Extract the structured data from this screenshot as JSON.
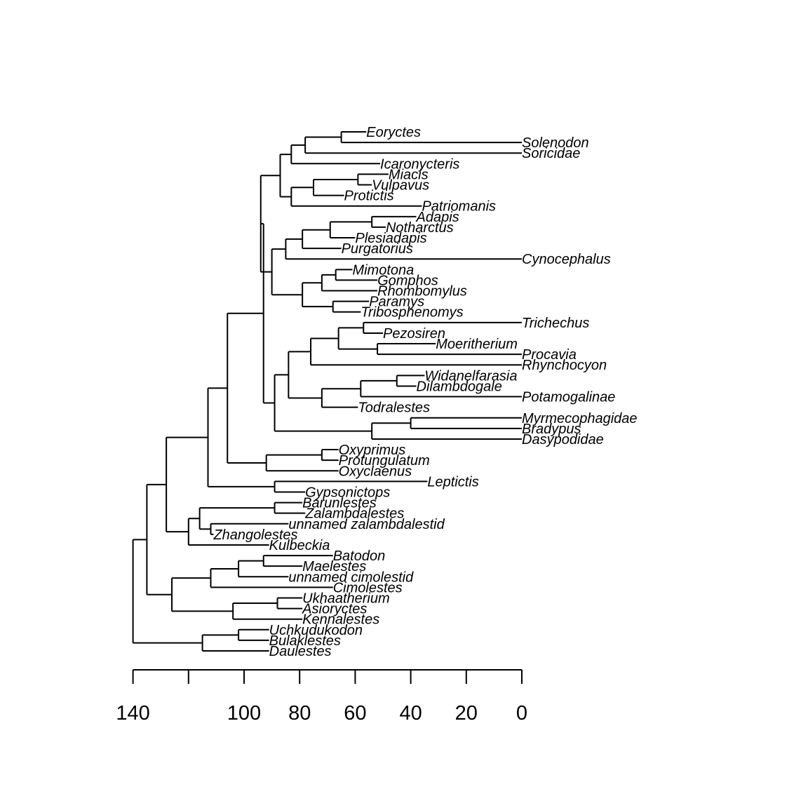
{
  "colors": {
    "ink": "#000000",
    "background": "#ffffff"
  },
  "axis": {
    "unit": "",
    "min": 0,
    "max": 140,
    "direction": "reversed",
    "ticks": [
      140,
      120,
      100,
      80,
      60,
      40,
      20,
      0
    ],
    "labeled_ticks": [
      140,
      100,
      80,
      60,
      40,
      20,
      0
    ]
  },
  "tips": [
    {
      "id": "eoryctes",
      "name": "Eoryctes",
      "age": 56
    },
    {
      "id": "solenodon",
      "name": "Solenodon",
      "age": 0
    },
    {
      "id": "soricidae",
      "name": "Soricidae",
      "age": 0
    },
    {
      "id": "icaronycteris",
      "name": "Icaronycteris",
      "age": 51
    },
    {
      "id": "miacis",
      "name": "Miacis",
      "age": 48
    },
    {
      "id": "vulpavus",
      "name": "Vulpavus",
      "age": 54
    },
    {
      "id": "protictis",
      "name": "Protictis",
      "age": 64
    },
    {
      "id": "patriomanis",
      "name": "Patriomanis",
      "age": 36
    },
    {
      "id": "adapis",
      "name": "Adapis",
      "age": 38
    },
    {
      "id": "notharctus",
      "name": "Notharctus",
      "age": 49
    },
    {
      "id": "plesiadapis",
      "name": "Plesiadapis",
      "age": 60
    },
    {
      "id": "purgatorius",
      "name": "Purgatorius",
      "age": 65
    },
    {
      "id": "cynocephalus",
      "name": "Cynocephalus",
      "age": 0
    },
    {
      "id": "mimotona",
      "name": "Mimotona",
      "age": 61
    },
    {
      "id": "gomphos",
      "name": "Gomphos",
      "age": 52
    },
    {
      "id": "rhombomylus",
      "name": "Rhombomylus",
      "age": 52
    },
    {
      "id": "paramys",
      "name": "Paramys",
      "age": 55
    },
    {
      "id": "tribosphenomys",
      "name": "Tribosphenomys",
      "age": 58
    },
    {
      "id": "trichechus",
      "name": "Trichechus",
      "age": 0
    },
    {
      "id": "pezosiren",
      "name": "Pezosiren",
      "age": 50
    },
    {
      "id": "moeritherium",
      "name": "Moeritherium",
      "age": 31
    },
    {
      "id": "procavia",
      "name": "Procavia",
      "age": 0
    },
    {
      "id": "rhynchocyon",
      "name": "Rhynchocyon",
      "age": 0
    },
    {
      "id": "widanelfarasia",
      "name": "Widanelfarasia",
      "age": 35
    },
    {
      "id": "dilambdogale",
      "name": "Dilambdogale",
      "age": 38
    },
    {
      "id": "potamogalinae",
      "name": "Potamogalinae",
      "age": 0
    },
    {
      "id": "todralestes",
      "name": "Todralestes",
      "age": 59
    },
    {
      "id": "myrmecophagidae",
      "name": "Myrmecophagidae",
      "age": 0
    },
    {
      "id": "bradypus",
      "name": "Bradypus",
      "age": 0
    },
    {
      "id": "dasypodidae",
      "name": "Dasypodidae",
      "age": 0
    },
    {
      "id": "oxyprimus",
      "name": "Oxyprimus",
      "age": 66
    },
    {
      "id": "protungulatum",
      "name": "Protungulatum",
      "age": 66
    },
    {
      "id": "oxyclaenus",
      "name": "Oxyclaenus",
      "age": 66
    },
    {
      "id": "leptictis",
      "name": "Leptictis",
      "age": 34
    },
    {
      "id": "gypsonictops",
      "name": "Gypsonictops",
      "age": 78
    },
    {
      "id": "barunlestes",
      "name": "Barunlestes",
      "age": 79
    },
    {
      "id": "zalambdalestes",
      "name": "Zalambdalestes",
      "age": 78
    },
    {
      "id": "unnamed_zalambdalestid",
      "name": "unnamed zalambdalestid",
      "age": 84
    },
    {
      "id": "zhangolestes",
      "name": "Zhangolestes",
      "age": 111
    },
    {
      "id": "kulbeckia",
      "name": "Kulbeckia",
      "age": 91
    },
    {
      "id": "batodon",
      "name": "Batodon",
      "age": 68
    },
    {
      "id": "maelestes",
      "name": "Maelestes",
      "age": 79
    },
    {
      "id": "unnamed_cimolestid",
      "name": "unnamed cimolestid",
      "age": 84
    },
    {
      "id": "cimolestes",
      "name": "Cimolestes",
      "age": 68
    },
    {
      "id": "ukhaatherium",
      "name": "Ukhaatherium",
      "age": 79
    },
    {
      "id": "asioryctes",
      "name": "Asioryctes",
      "age": 79
    },
    {
      "id": "kennalestes",
      "name": "Kennalestes",
      "age": 79
    },
    {
      "id": "uchkudukodon",
      "name": "Uchkudukodon",
      "age": 91
    },
    {
      "id": "bulaklestes",
      "name": "Bulaklestes",
      "age": 91
    },
    {
      "id": "daulestes",
      "name": "Daulestes",
      "age": 91
    }
  ],
  "tree": {
    "age": 140,
    "children": [
      {
        "age": 135,
        "children": [
          {
            "age": 128,
            "children": [
              {
                "age": 113,
                "children": [
                  {
                    "age": 106,
                    "children": [
                      {
                        "age": 93,
                        "children": [
                          {
                            "age": 94,
                            "children": [
                              {
                                "age": 87,
                                "children": [
                                  {
                                    "age": 83,
                                    "children": [
                                      {
                                        "age": 78,
                                        "children": [
                                          {
                                            "age": 65,
                                            "children": [
                                              "eoryctes",
                                              "solenodon"
                                            ]
                                          },
                                          "soricidae"
                                        ]
                                      },
                                      "icaronycteris"
                                    ]
                                  },
                                  {
                                    "age": 87,
                                    "children": [
                                      {
                                        "age": 83,
                                        "children": [
                                          {
                                            "age": 75,
                                            "children": [
                                              {
                                                "age": 59,
                                                "children": [
                                                  "miacis",
                                                  "vulpavus"
                                                ]
                                              },
                                              "protictis"
                                            ]
                                          },
                                          "patriomanis"
                                        ]
                                      }
                                    ]
                                  }
                                ]
                              },
                              {
                                "age": 90,
                                "children": [
                                  {
                                    "age": 85,
                                    "children": [
                                      {
                                        "age": 79,
                                        "children": [
                                          {
                                            "age": 69,
                                            "children": [
                                              {
                                                "age": 54,
                                                "children": [
                                                  "adapis",
                                                  "notharctus"
                                                ]
                                              },
                                              "plesiadapis"
                                            ]
                                          },
                                          "purgatorius"
                                        ]
                                      },
                                      "cynocephalus"
                                    ]
                                  },
                                  {
                                    "age": 79,
                                    "children": [
                                      {
                                        "age": 72,
                                        "children": [
                                          {
                                            "age": 67,
                                            "children": [
                                              "mimotona",
                                              "gomphos"
                                            ]
                                          },
                                          "rhombomylus"
                                        ]
                                      },
                                      {
                                        "age": 68,
                                        "children": [
                                          "paramys",
                                          "tribosphenomys"
                                        ]
                                      }
                                    ]
                                  }
                                ]
                              }
                            ]
                          },
                          {
                            "age": 89,
                            "children": [
                              {
                                "age": 84,
                                "children": [
                                  {
                                    "age": 76,
                                    "children": [
                                      {
                                        "age": 66,
                                        "children": [
                                          {
                                            "age": 57,
                                            "children": [
                                              "trichechus",
                                              "pezosiren"
                                            ]
                                          },
                                          {
                                            "age": 52,
                                            "children": [
                                              "moeritherium",
                                              "procavia"
                                            ]
                                          }
                                        ]
                                      },
                                      "rhynchocyon"
                                    ]
                                  },
                                  {
                                    "age": 72,
                                    "children": [
                                      {
                                        "age": 58,
                                        "children": [
                                          {
                                            "age": 45,
                                            "children": [
                                              "widanelfarasia",
                                              "dilambdogale"
                                            ]
                                          },
                                          "potamogalinae"
                                        ]
                                      },
                                      "todralestes"
                                    ]
                                  }
                                ]
                              },
                              {
                                "age": 54,
                                "children": [
                                  {
                                    "age": 40,
                                    "children": [
                                      "myrmecophagidae",
                                      "bradypus"
                                    ]
                                  },
                                  "dasypodidae"
                                ]
                              }
                            ]
                          }
                        ]
                      },
                      {
                        "age": 92,
                        "children": [
                          {
                            "age": 72,
                            "children": [
                              "oxyprimus",
                              "protungulatum"
                            ]
                          },
                          "oxyclaenus"
                        ]
                      }
                    ]
                  },
                  {
                    "age": 89,
                    "children": [
                      "leptictis",
                      "gypsonictops"
                    ]
                  }
                ]
              },
              {
                "age": 120,
                "children": [
                  {
                    "age": 116,
                    "children": [
                      {
                        "age": 89,
                        "children": [
                          "barunlestes",
                          "zalambdalestes"
                        ]
                      },
                      {
                        "age": 112,
                        "children": [
                          "unnamed_zalambdalestid",
                          "zhangolestes"
                        ]
                      }
                    ]
                  },
                  "kulbeckia"
                ]
              }
            ]
          },
          {
            "age": 126,
            "children": [
              {
                "age": 112,
                "children": [
                  {
                    "age": 102,
                    "children": [
                      {
                        "age": 93,
                        "children": [
                          "batodon",
                          "maelestes"
                        ]
                      },
                      "unnamed_cimolestid"
                    ]
                  },
                  "cimolestes"
                ]
              },
              {
                "age": 104,
                "children": [
                  {
                    "age": 88,
                    "children": [
                      "ukhaatherium",
                      "asioryctes"
                    ]
                  },
                  "kennalestes"
                ]
              }
            ]
          }
        ]
      },
      {
        "age": 115,
        "children": [
          {
            "age": 102,
            "children": [
              "uchkudukodon",
              "bulaklestes"
            ]
          },
          "daulestes"
        ]
      }
    ]
  }
}
